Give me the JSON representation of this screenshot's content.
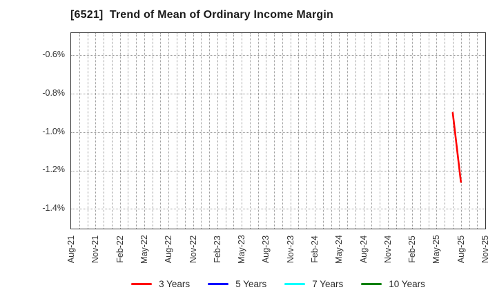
{
  "figure": {
    "background": "#ffffff",
    "border_color": "#333333",
    "grid_color": "#9b9b9b",
    "grid_style": "dotted"
  },
  "chart_data": {
    "type": "line",
    "title": "[6521]  Trend of Mean of Ordinary Income Margin",
    "ticker_code": "6521",
    "x_axis": {
      "tick_labels": [
        "Aug-21",
        "Nov-21",
        "Feb-22",
        "May-22",
        "Aug-22",
        "Nov-22",
        "Feb-23",
        "May-23",
        "Aug-23",
        "Nov-23",
        "Feb-24",
        "May-24",
        "Aug-24",
        "Nov-24",
        "Feb-25",
        "May-25",
        "Aug-25",
        "Nov-25"
      ],
      "tick_month_step": 3,
      "total_months": 51,
      "gridlines": "monthly"
    },
    "y_axis": {
      "tick_labels": [
        "-0.6%",
        "-0.8%",
        "-1.0%",
        "-1.2%",
        "-1.4%"
      ],
      "tick_values": [
        -0.6,
        -0.8,
        -1.0,
        -1.2,
        -1.4
      ],
      "ylim": [
        -1.503,
        -0.485
      ],
      "unit": "%"
    },
    "series": [
      {
        "name": "3 Years",
        "color": "#ff0000",
        "points": [
          {
            "month": "Jul-25",
            "month_index": 47,
            "value": -0.9
          },
          {
            "month": "Aug-25",
            "month_index": 48,
            "value": -1.26
          }
        ]
      },
      {
        "name": "5 Years",
        "color": "#0000ff",
        "points": []
      },
      {
        "name": "7 Years",
        "color": "#00ffff",
        "points": []
      },
      {
        "name": "10 Years",
        "color": "#008000",
        "points": []
      }
    ],
    "legend": {
      "position": "bottom-center",
      "entries": [
        "3 Years",
        "5 Years",
        "7 Years",
        "10 Years"
      ]
    }
  }
}
